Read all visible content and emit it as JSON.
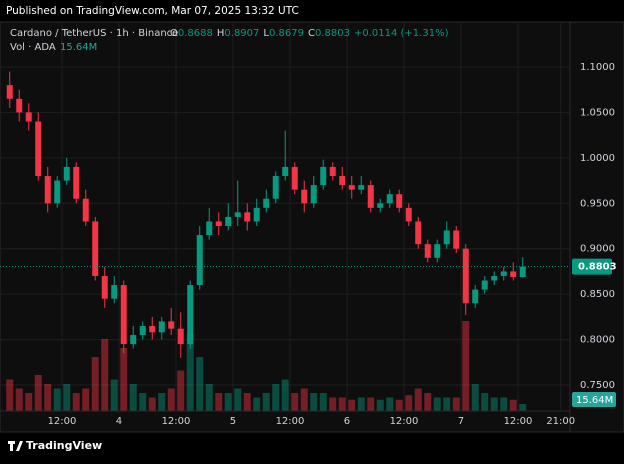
{
  "chart_data": {
    "type": "candlestick",
    "published": "Published on TradingView.com, Mar 07, 2025 13:32 UTC",
    "title": "Cardano / TetherUS · 1h · Binance",
    "ohlc_keys": [
      "O",
      "H",
      "L",
      "C"
    ],
    "change": "+0.0114 (+1.31%)",
    "brand": "TradingView",
    "x": [
      1,
      3,
      5,
      7,
      9,
      11,
      13,
      15,
      17,
      19,
      21,
      23,
      25,
      27,
      29,
      31,
      33,
      35,
      37,
      39,
      41,
      43,
      45,
      47,
      49,
      51,
      53,
      55,
      57,
      59,
      61,
      63,
      65,
      67,
      69,
      71,
      73,
      75,
      77,
      79,
      81,
      83,
      85,
      87,
      89,
      91,
      93,
      95,
      97,
      99,
      101,
      103,
      105,
      107,
      109
    ],
    "series": [
      {
        "name": "ADA",
        "up_color": "#089981",
        "down_color": "#f23645",
        "open": [
          1.08,
          1.065,
          1.05,
          1.04,
          0.98,
          0.95,
          0.975,
          0.99,
          0.955,
          0.93,
          0.87,
          0.845,
          0.86,
          0.795,
          0.805,
          0.815,
          0.808,
          0.82,
          0.812,
          0.795,
          0.86,
          0.915,
          0.93,
          0.925,
          0.935,
          0.94,
          0.93,
          0.945,
          0.955,
          0.98,
          0.99,
          0.965,
          0.95,
          0.97,
          0.99,
          0.98,
          0.97,
          0.965,
          0.97,
          0.945,
          0.95,
          0.96,
          0.945,
          0.93,
          0.905,
          0.89,
          0.905,
          0.92,
          0.9,
          0.84,
          0.855,
          0.865,
          0.87,
          0.875,
          0.8688
        ],
        "high": [
          1.095,
          1.075,
          1.06,
          1.05,
          0.99,
          0.98,
          1.0,
          0.995,
          0.965,
          0.935,
          0.88,
          0.87,
          0.865,
          0.815,
          0.82,
          0.825,
          0.825,
          0.835,
          0.83,
          0.865,
          0.925,
          0.945,
          0.94,
          0.95,
          0.975,
          0.95,
          0.955,
          0.965,
          0.985,
          1.03,
          0.995,
          0.975,
          0.98,
          0.998,
          0.995,
          0.99,
          0.98,
          0.98,
          0.975,
          0.955,
          0.965,
          0.965,
          0.95,
          0.935,
          0.91,
          0.91,
          0.93,
          0.925,
          0.905,
          0.86,
          0.87,
          0.875,
          0.88,
          0.885,
          0.8907
        ],
        "low": [
          1.055,
          1.04,
          1.03,
          0.975,
          0.94,
          0.945,
          0.97,
          0.95,
          0.925,
          0.865,
          0.835,
          0.84,
          0.785,
          0.79,
          0.8,
          0.8,
          0.8,
          0.805,
          0.78,
          0.79,
          0.855,
          0.91,
          0.915,
          0.92,
          0.925,
          0.92,
          0.925,
          0.94,
          0.95,
          0.975,
          0.96,
          0.94,
          0.945,
          0.965,
          0.975,
          0.965,
          0.955,
          0.96,
          0.94,
          0.94,
          0.945,
          0.94,
          0.925,
          0.9,
          0.885,
          0.885,
          0.9,
          0.895,
          0.827,
          0.835,
          0.85,
          0.86,
          0.865,
          0.865,
          0.8679
        ],
        "close": [
          1.065,
          1.05,
          1.04,
          0.98,
          0.95,
          0.975,
          0.99,
          0.955,
          0.93,
          0.87,
          0.845,
          0.86,
          0.795,
          0.805,
          0.815,
          0.808,
          0.82,
          0.812,
          0.795,
          0.86,
          0.915,
          0.93,
          0.925,
          0.935,
          0.94,
          0.93,
          0.945,
          0.955,
          0.98,
          0.99,
          0.965,
          0.95,
          0.97,
          0.99,
          0.98,
          0.97,
          0.965,
          0.97,
          0.945,
          0.95,
          0.96,
          0.945,
          0.93,
          0.905,
          0.89,
          0.905,
          0.92,
          0.9,
          0.84,
          0.855,
          0.865,
          0.87,
          0.875,
          0.8688,
          0.8803
        ]
      }
    ],
    "volume": {
      "name": "Vol · ADA",
      "label": "15.64M",
      "values": [
        70,
        50,
        40,
        80,
        60,
        50,
        60,
        40,
        50,
        120,
        160,
        70,
        140,
        60,
        40,
        30,
        40,
        50,
        90,
        170,
        120,
        60,
        40,
        40,
        50,
        40,
        30,
        40,
        60,
        70,
        40,
        50,
        40,
        40,
        30,
        30,
        25,
        30,
        30,
        25,
        30,
        25,
        35,
        50,
        40,
        30,
        30,
        30,
        200,
        60,
        40,
        30,
        30,
        25,
        15.64
      ],
      "vlim": [
        0,
        400
      ]
    },
    "last_price": {
      "value": 0.8803,
      "label": "0.8803"
    },
    "xlim": [
      -1.05,
      118.95
    ],
    "xticks": [
      {
        "value": 12,
        "label": "12:00"
      },
      {
        "value": 24,
        "label": "4"
      },
      {
        "value": 36,
        "label": "12:00"
      },
      {
        "value": 48,
        "label": "5"
      },
      {
        "value": 60,
        "label": "12:00"
      },
      {
        "value": 72,
        "label": "6"
      },
      {
        "value": 84,
        "label": "12:00"
      },
      {
        "value": 96,
        "label": "7"
      },
      {
        "value": 108,
        "label": "12:00"
      },
      {
        "value": 117,
        "label": "21:00"
      }
    ],
    "ylim": [
      0.7214,
      1.1495
    ],
    "yticks": [
      {
        "value": 0.75,
        "label": "0.7500"
      },
      {
        "value": 0.8,
        "label": "0.8000"
      },
      {
        "value": 0.85,
        "label": "0.8500"
      },
      {
        "value": 0.9,
        "label": "0.9000"
      },
      {
        "value": 0.95,
        "label": "0.9500"
      },
      {
        "value": 1.0,
        "label": "1.0000"
      },
      {
        "value": 1.05,
        "label": "1.0500"
      },
      {
        "value": 1.1,
        "label": "1.1000"
      }
    ],
    "grid": true
  }
}
